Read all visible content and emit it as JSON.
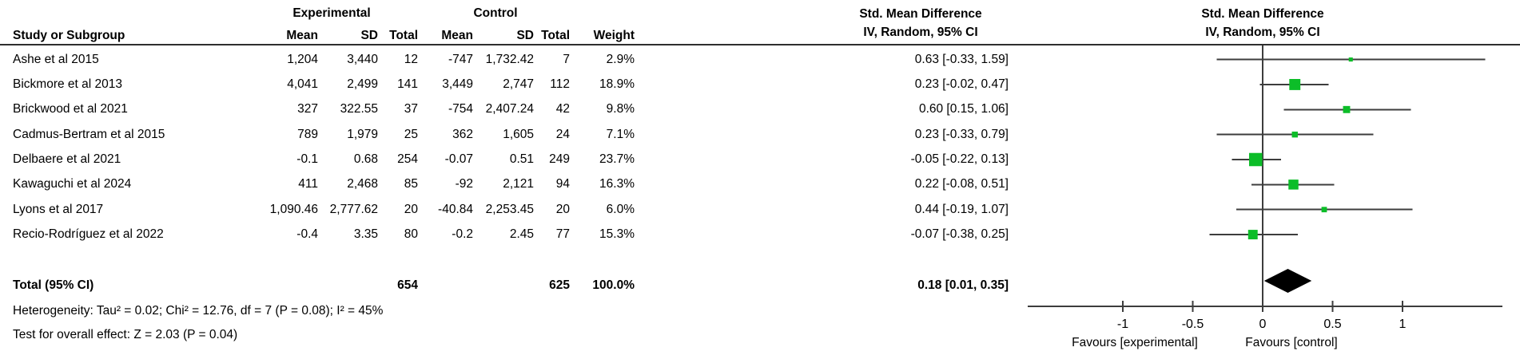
{
  "header": {
    "group_exp": "Experimental",
    "group_ctrl": "Control",
    "smd_line1": "Std. Mean Difference",
    "smd_line2": "IV, Random, 95% CI",
    "col_study": "Study or Subgroup",
    "col_mean": "Mean",
    "col_sd": "SD",
    "col_total": "Total",
    "col_weight": "Weight"
  },
  "rows": [
    {
      "study": "Ashe et al 2015",
      "exp_mean": "1,204",
      "exp_sd": "3,440",
      "exp_total": "12",
      "ctrl_mean": "-747",
      "ctrl_sd": "1,732.42",
      "ctrl_total": "7",
      "weight": "2.9%",
      "ci": "0.63 [-0.33, 1.59]"
    },
    {
      "study": "Bickmore et al 2013",
      "exp_mean": "4,041",
      "exp_sd": "2,499",
      "exp_total": "141",
      "ctrl_mean": "3,449",
      "ctrl_sd": "2,747",
      "ctrl_total": "112",
      "weight": "18.9%",
      "ci": "0.23 [-0.02, 0.47]"
    },
    {
      "study": "Brickwood et al 2021",
      "exp_mean": "327",
      "exp_sd": "322.55",
      "exp_total": "37",
      "ctrl_mean": "-754",
      "ctrl_sd": "2,407.24",
      "ctrl_total": "42",
      "weight": "9.8%",
      "ci": "0.60 [0.15, 1.06]"
    },
    {
      "study": "Cadmus-Bertram et al 2015",
      "exp_mean": "789",
      "exp_sd": "1,979",
      "exp_total": "25",
      "ctrl_mean": "362",
      "ctrl_sd": "1,605",
      "ctrl_total": "24",
      "weight": "7.1%",
      "ci": "0.23 [-0.33, 0.79]"
    },
    {
      "study": "Delbaere et al 2021",
      "exp_mean": "-0.1",
      "exp_sd": "0.68",
      "exp_total": "254",
      "ctrl_mean": "-0.07",
      "ctrl_sd": "0.51",
      "ctrl_total": "249",
      "weight": "23.7%",
      "ci": "-0.05 [-0.22, 0.13]"
    },
    {
      "study": "Kawaguchi et al 2024",
      "exp_mean": "411",
      "exp_sd": "2,468",
      "exp_total": "85",
      "ctrl_mean": "-92",
      "ctrl_sd": "2,121",
      "ctrl_total": "94",
      "weight": "16.3%",
      "ci": "0.22 [-0.08, 0.51]"
    },
    {
      "study": "Lyons et al 2017",
      "exp_mean": "1,090.46",
      "exp_sd": "2,777.62",
      "exp_total": "20",
      "ctrl_mean": "-40.84",
      "ctrl_sd": "2,253.45",
      "ctrl_total": "20",
      "weight": "6.0%",
      "ci": "0.44 [-0.19, 1.07]"
    },
    {
      "study": "Recio-Rodríguez et al 2022",
      "exp_mean": "-0.4",
      "exp_sd": "3.35",
      "exp_total": "80",
      "ctrl_mean": "-0.2",
      "ctrl_sd": "2.45",
      "ctrl_total": "77",
      "weight": "15.3%",
      "ci": "-0.07 [-0.38, 0.25]"
    }
  ],
  "total": {
    "label": "Total (95% CI)",
    "exp_total": "654",
    "ctrl_total": "625",
    "weight": "100.0%",
    "ci": "0.18 [0.01, 0.35]"
  },
  "footer": {
    "heterogeneity": "Heterogeneity: Tau² = 0.02; Chi² = 12.76, df = 7 (P = 0.08); I² = 45%",
    "overall_effect": "Test for overall effect: Z = 2.03 (P = 0.04)"
  },
  "plot_labels": {
    "favours_left": "Favours [experimental]",
    "favours_right": "Favours [control]"
  },
  "colors": {
    "marker_green": "#0cbd28",
    "diamond_black": "#000000",
    "line_gray": "#3d3d3d"
  },
  "chart_data": {
    "type": "forest",
    "effect_measure": "Std. Mean Difference",
    "model": "IV, Random, 95% CI",
    "studies": [
      {
        "name": "Ashe et al 2015",
        "smd": 0.63,
        "ci_low": -0.33,
        "ci_high": 1.59,
        "weight_pct": 2.9
      },
      {
        "name": "Bickmore et al 2013",
        "smd": 0.23,
        "ci_low": -0.02,
        "ci_high": 0.47,
        "weight_pct": 18.9
      },
      {
        "name": "Brickwood et al 2021",
        "smd": 0.6,
        "ci_low": 0.15,
        "ci_high": 1.06,
        "weight_pct": 9.8
      },
      {
        "name": "Cadmus-Bertram et al 2015",
        "smd": 0.23,
        "ci_low": -0.33,
        "ci_high": 0.79,
        "weight_pct": 7.1
      },
      {
        "name": "Delbaere et al 2021",
        "smd": -0.05,
        "ci_low": -0.22,
        "ci_high": 0.13,
        "weight_pct": 23.7
      },
      {
        "name": "Kawaguchi et al 2024",
        "smd": 0.22,
        "ci_low": -0.08,
        "ci_high": 0.51,
        "weight_pct": 16.3
      },
      {
        "name": "Lyons et al 2017",
        "smd": 0.44,
        "ci_low": -0.19,
        "ci_high": 1.07,
        "weight_pct": 6.0
      },
      {
        "name": "Recio-Rodríguez et al 2022",
        "smd": -0.07,
        "ci_low": -0.38,
        "ci_high": 0.25,
        "weight_pct": 15.3
      }
    ],
    "overall": {
      "smd": 0.18,
      "ci_low": 0.01,
      "ci_high": 0.35,
      "total_experimental": 654,
      "total_control": 625
    },
    "axis": {
      "ticks": [
        -1,
        -0.5,
        0,
        0.5,
        1
      ],
      "xlim": [
        -1.68,
        1.71
      ],
      "zero_line": 0
    },
    "heterogeneity": {
      "tau2": 0.02,
      "chi2": 12.76,
      "df": 7,
      "p": 0.08,
      "i2_pct": 45
    },
    "overall_effect_test": {
      "z": 2.03,
      "p": 0.04
    }
  }
}
